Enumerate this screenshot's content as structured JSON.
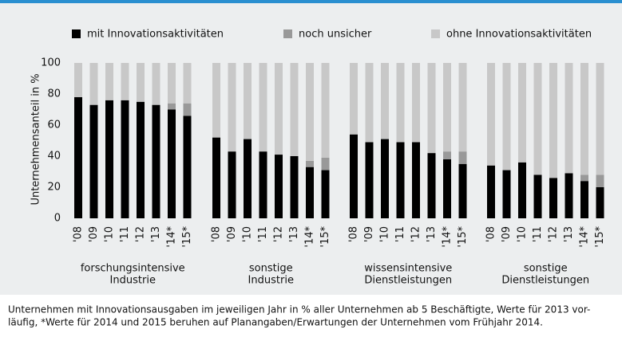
{
  "chart_data": {
    "type": "stacked_bar",
    "ylabel": "Unternehmensanteil in %",
    "ylim": [
      0,
      100
    ],
    "yticks": [
      0,
      20,
      40,
      60,
      80,
      100
    ],
    "categories": [
      "'08",
      "'09",
      "'10",
      "'11",
      "'12",
      "'13",
      "'14*",
      "'15*"
    ],
    "groups": [
      [
        "forschungsintensive",
        "Industrie"
      ],
      [
        "sonstige",
        "Industrie"
      ],
      [
        "wissensintensive",
        "Dienstleistungen"
      ],
      [
        "sonstige",
        "Dienstleistungen"
      ]
    ],
    "series": [
      {
        "name": "mit Innovationsaktivitäten",
        "color": "#000000",
        "values": [
          [
            78,
            73,
            76,
            76,
            75,
            73,
            70,
            66
          ],
          [
            52,
            43,
            51,
            43,
            41,
            40,
            33,
            31
          ],
          [
            54,
            49,
            51,
            49,
            49,
            42,
            38,
            35
          ],
          [
            34,
            31,
            36,
            28,
            26,
            29,
            24,
            20
          ]
        ]
      },
      {
        "name": "noch unsicher",
        "color": "#999999",
        "values": [
          [
            null,
            null,
            null,
            null,
            null,
            null,
            4,
            8
          ],
          [
            null,
            null,
            null,
            null,
            null,
            null,
            4,
            8
          ],
          [
            null,
            null,
            null,
            null,
            null,
            null,
            5,
            8
          ],
          [
            null,
            null,
            null,
            null,
            null,
            null,
            4,
            8
          ]
        ]
      },
      {
        "name": "ohne Innovationsaktivitäten",
        "color": "#c8c8c8",
        "values": [
          [
            22,
            27,
            24,
            24,
            25,
            27,
            26,
            26
          ],
          [
            48,
            57,
            49,
            57,
            59,
            60,
            63,
            61
          ],
          [
            46,
            51,
            49,
            51,
            51,
            58,
            57,
            57
          ],
          [
            66,
            69,
            64,
            72,
            74,
            71,
            72,
            72
          ]
        ]
      }
    ],
    "caption": [
      "Unternehmen mit Innovationsausgaben im jeweiligen Jahr in % aller Unternehmen ab 5 Beschäftigte, Werte für 2013 vor-",
      "läufig, *Werte für 2014 und 2015 beruhen auf Planangaben/Erwartungen der Unternehmen vom Frühjahr 2014."
    ]
  }
}
